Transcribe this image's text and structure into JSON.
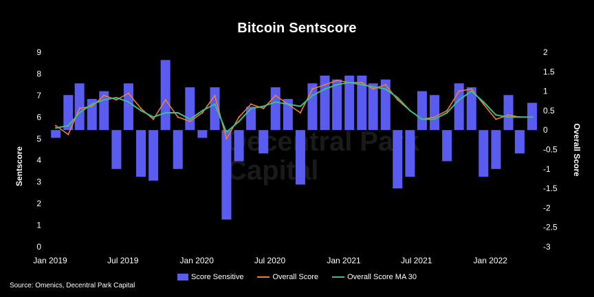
{
  "chart_data": {
    "type": "bar+line",
    "title": "Bitcoin Sentscore",
    "ylabel_left": "Sentscore",
    "ylabel_right": "Overall Score",
    "ylim_left": [
      0,
      9
    ],
    "ylim_right": [
      -3,
      2
    ],
    "yticks_left": [
      "0",
      "1",
      "2",
      "3",
      "4",
      "5",
      "6",
      "7",
      "8",
      "9"
    ],
    "yticks_right": [
      "-3",
      "-2.5",
      "-2",
      "-1.5",
      "-1",
      "-0.5",
      "0",
      "0.5",
      "1",
      "1.5",
      "2"
    ],
    "xticks": [
      "Jan 2019",
      "Jul 2019",
      "Jan 2020",
      "Jul 2020",
      "Jan 2021",
      "Jul 2021",
      "Jan 2022"
    ],
    "xtick_dates": [
      "2019-01-01",
      "2019-07-01",
      "2020-01-01",
      "2020-07-01",
      "2021-01-01",
      "2021-07-01",
      "2022-01-01"
    ],
    "x_range": [
      "2019-01-01",
      "2022-04-15"
    ],
    "grid": false,
    "legend_position": "bottom",
    "source": "Source: Omenics, Decentral Park Capital",
    "watermark": "Decentral Park Capital",
    "series": [
      {
        "name": "Score Sensitive",
        "kind": "bar",
        "axis": "right",
        "color": "#5a5cf0",
        "x": [
          "2019-01",
          "2019-02",
          "2019-03",
          "2019-04",
          "2019-05",
          "2019-06",
          "2019-07",
          "2019-08",
          "2019-09",
          "2019-10",
          "2019-11",
          "2019-12",
          "2020-01",
          "2020-02",
          "2020-03",
          "2020-04",
          "2020-05",
          "2020-06",
          "2020-07",
          "2020-08",
          "2020-09",
          "2020-10",
          "2020-11",
          "2020-12",
          "2021-01",
          "2021-02",
          "2021-03",
          "2021-04",
          "2021-05",
          "2021-06",
          "2021-07",
          "2021-08",
          "2021-09",
          "2021-10",
          "2021-11",
          "2021-12",
          "2022-01",
          "2022-02",
          "2022-03",
          "2022-04"
        ],
        "values": [
          -0.2,
          0.9,
          1.2,
          0.8,
          1.0,
          -1.0,
          1.2,
          -1.2,
          -1.3,
          1.8,
          -1.0,
          1.1,
          -0.2,
          1.1,
          -2.3,
          -0.8,
          0.6,
          -0.6,
          1.1,
          0.8,
          -1.4,
          1.2,
          1.4,
          1.3,
          1.4,
          1.4,
          1.2,
          1.3,
          -1.5,
          -1.2,
          1.0,
          0.9,
          -0.8,
          1.2,
          1.1,
          -1.2,
          -1.0,
          0.9,
          -0.6,
          0.7
        ]
      },
      {
        "name": "Overall Score",
        "kind": "line",
        "axis": "left",
        "color": "#f08030",
        "x": [
          "2019-01",
          "2019-02",
          "2019-03",
          "2019-04",
          "2019-05",
          "2019-06",
          "2019-07",
          "2019-08",
          "2019-09",
          "2019-10",
          "2019-11",
          "2019-12",
          "2020-01",
          "2020-02",
          "2020-03",
          "2020-04",
          "2020-05",
          "2020-06",
          "2020-07",
          "2020-08",
          "2020-09",
          "2020-10",
          "2020-11",
          "2020-12",
          "2021-01",
          "2021-02",
          "2021-03",
          "2021-04",
          "2021-05",
          "2021-06",
          "2021-07",
          "2021-08",
          "2021-09",
          "2021-10",
          "2021-11",
          "2021-12",
          "2022-01",
          "2022-02",
          "2022-03",
          "2022-04"
        ],
        "values": [
          5.6,
          5.2,
          6.4,
          6.5,
          7.0,
          6.8,
          7.1,
          6.4,
          5.9,
          6.8,
          6.0,
          5.8,
          6.2,
          7.0,
          5.0,
          6.0,
          6.6,
          6.4,
          7.0,
          6.6,
          6.2,
          7.3,
          7.5,
          7.7,
          7.6,
          7.6,
          7.3,
          7.5,
          6.8,
          6.3,
          5.9,
          6.0,
          6.3,
          7.2,
          7.3,
          6.6,
          5.9,
          6.1,
          6.0,
          6.0
        ]
      },
      {
        "name": "Overall Score MA 30",
        "kind": "line",
        "axis": "left",
        "color": "#3cc08a",
        "x": [
          "2019-01",
          "2019-02",
          "2019-03",
          "2019-04",
          "2019-05",
          "2019-06",
          "2019-07",
          "2019-08",
          "2019-09",
          "2019-10",
          "2019-11",
          "2019-12",
          "2020-01",
          "2020-02",
          "2020-03",
          "2020-04",
          "2020-05",
          "2020-06",
          "2020-07",
          "2020-08",
          "2020-09",
          "2020-10",
          "2020-11",
          "2020-12",
          "2021-01",
          "2021-02",
          "2021-03",
          "2021-04",
          "2021-05",
          "2021-06",
          "2021-07",
          "2021-08",
          "2021-09",
          "2021-10",
          "2021-11",
          "2021-12",
          "2022-01",
          "2022-02",
          "2022-03",
          "2022-04"
        ],
        "values": [
          5.5,
          5.6,
          6.2,
          6.6,
          6.8,
          6.9,
          6.7,
          6.3,
          6.0,
          6.2,
          6.2,
          5.9,
          6.3,
          6.6,
          5.3,
          5.8,
          6.4,
          6.5,
          6.7,
          6.6,
          6.5,
          7.0,
          7.3,
          7.5,
          7.6,
          7.5,
          7.4,
          7.3,
          6.9,
          6.3,
          5.9,
          5.9,
          6.2,
          6.8,
          7.2,
          6.7,
          6.1,
          6.0,
          6.0,
          6.0
        ]
      }
    ]
  }
}
